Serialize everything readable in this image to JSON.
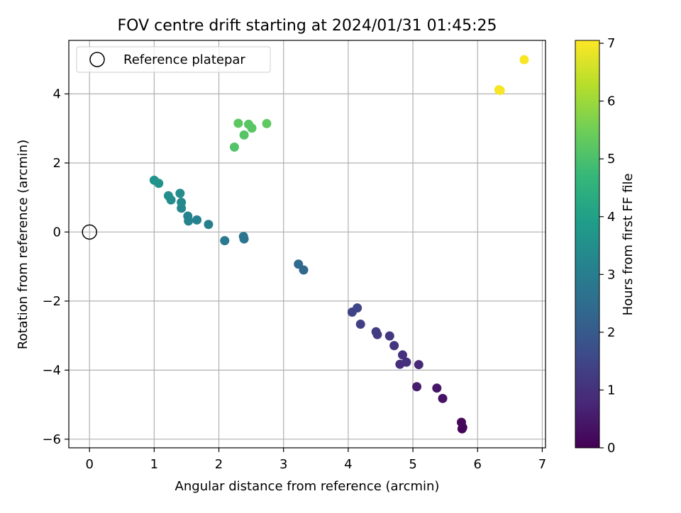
{
  "chart_data": {
    "type": "scatter",
    "title": "FOV centre drift starting at 2024/01/31 01:45:25",
    "xlabel": "Angular distance from reference (arcmin)",
    "ylabel": "Rotation from reference (arcmin)",
    "xlim": [
      -0.32,
      7.05
    ],
    "ylim": [
      -6.25,
      5.55
    ],
    "xticks": [
      0,
      1,
      2,
      3,
      4,
      5,
      6,
      7
    ],
    "yticks": [
      -6,
      -4,
      -2,
      0,
      2,
      4
    ],
    "xtick_labels": [
      "0",
      "1",
      "2",
      "3",
      "4",
      "5",
      "6",
      "7"
    ],
    "ytick_labels": [
      "−6",
      "−4",
      "−2",
      "0",
      "2",
      "4"
    ],
    "grid": true,
    "legend": {
      "position": "top-left",
      "entries": [
        "Reference platepar"
      ]
    },
    "reference_point": {
      "x": 0,
      "y": 0,
      "marker": "open-circle",
      "color": "#000000"
    },
    "colorbar": {
      "label": "Hours from first FF file",
      "range": [
        0,
        7.05
      ],
      "ticks": [
        0,
        1,
        2,
        3,
        4,
        5,
        6,
        7
      ],
      "tick_labels": [
        "0",
        "1",
        "2",
        "3",
        "4",
        "5",
        "6",
        "7"
      ],
      "colormap": "viridis",
      "stops": [
        "#440154",
        "#482878",
        "#3e4989",
        "#31688e",
        "#26828e",
        "#1f9e89",
        "#35b779",
        "#6ece58",
        "#b5de2b",
        "#fde725"
      ]
    },
    "points": [
      {
        "x": 5.76,
        "y": -5.7,
        "c": 0.05
      },
      {
        "x": 5.77,
        "y": -5.66,
        "c": 0.1
      },
      {
        "x": 5.75,
        "y": -5.51,
        "c": 0.15
      },
      {
        "x": 5.46,
        "y": -4.82,
        "c": 0.35
      },
      {
        "x": 5.37,
        "y": -4.52,
        "c": 0.45
      },
      {
        "x": 5.06,
        "y": -4.48,
        "c": 0.55
      },
      {
        "x": 5.09,
        "y": -3.84,
        "c": 0.8
      },
      {
        "x": 4.8,
        "y": -3.83,
        "c": 0.9
      },
      {
        "x": 4.9,
        "y": -3.77,
        "c": 0.95
      },
      {
        "x": 4.84,
        "y": -3.56,
        "c": 1.0
      },
      {
        "x": 4.71,
        "y": -3.29,
        "c": 1.1
      },
      {
        "x": 4.64,
        "y": -3.01,
        "c": 1.15
      },
      {
        "x": 4.45,
        "y": -2.97,
        "c": 1.2
      },
      {
        "x": 4.43,
        "y": -2.89,
        "c": 1.25
      },
      {
        "x": 4.19,
        "y": -2.67,
        "c": 1.35
      },
      {
        "x": 4.06,
        "y": -2.32,
        "c": 1.45
      },
      {
        "x": 4.14,
        "y": -2.2,
        "c": 1.5
      },
      {
        "x": 3.31,
        "y": -1.1,
        "c": 2.35
      },
      {
        "x": 3.23,
        "y": -0.93,
        "c": 2.45
      },
      {
        "x": 2.39,
        "y": -0.2,
        "c": 2.7
      },
      {
        "x": 2.38,
        "y": -0.13,
        "c": 2.75
      },
      {
        "x": 2.09,
        "y": -0.25,
        "c": 2.9
      },
      {
        "x": 1.84,
        "y": 0.22,
        "c": 3.05
      },
      {
        "x": 1.66,
        "y": 0.35,
        "c": 3.1
      },
      {
        "x": 1.53,
        "y": 0.32,
        "c": 3.15
      },
      {
        "x": 1.52,
        "y": 0.46,
        "c": 3.15
      },
      {
        "x": 1.42,
        "y": 0.69,
        "c": 3.25
      },
      {
        "x": 1.42,
        "y": 0.86,
        "c": 3.3
      },
      {
        "x": 1.4,
        "y": 1.12,
        "c": 3.4
      },
      {
        "x": 1.26,
        "y": 0.93,
        "c": 3.45
      },
      {
        "x": 1.22,
        "y": 1.05,
        "c": 3.5
      },
      {
        "x": 1.07,
        "y": 1.41,
        "c": 3.6
      },
      {
        "x": 1.0,
        "y": 1.5,
        "c": 3.65
      },
      {
        "x": 2.24,
        "y": 2.46,
        "c": 5.1
      },
      {
        "x": 2.39,
        "y": 2.81,
        "c": 5.15
      },
      {
        "x": 2.51,
        "y": 3.01,
        "c": 5.2
      },
      {
        "x": 2.46,
        "y": 3.12,
        "c": 5.2
      },
      {
        "x": 2.3,
        "y": 3.15,
        "c": 5.25
      },
      {
        "x": 2.74,
        "y": 3.14,
        "c": 5.3
      },
      {
        "x": 6.33,
        "y": 4.12,
        "c": 6.95
      },
      {
        "x": 6.35,
        "y": 4.1,
        "c": 6.97
      },
      {
        "x": 6.72,
        "y": 4.99,
        "c": 7.0
      }
    ]
  }
}
